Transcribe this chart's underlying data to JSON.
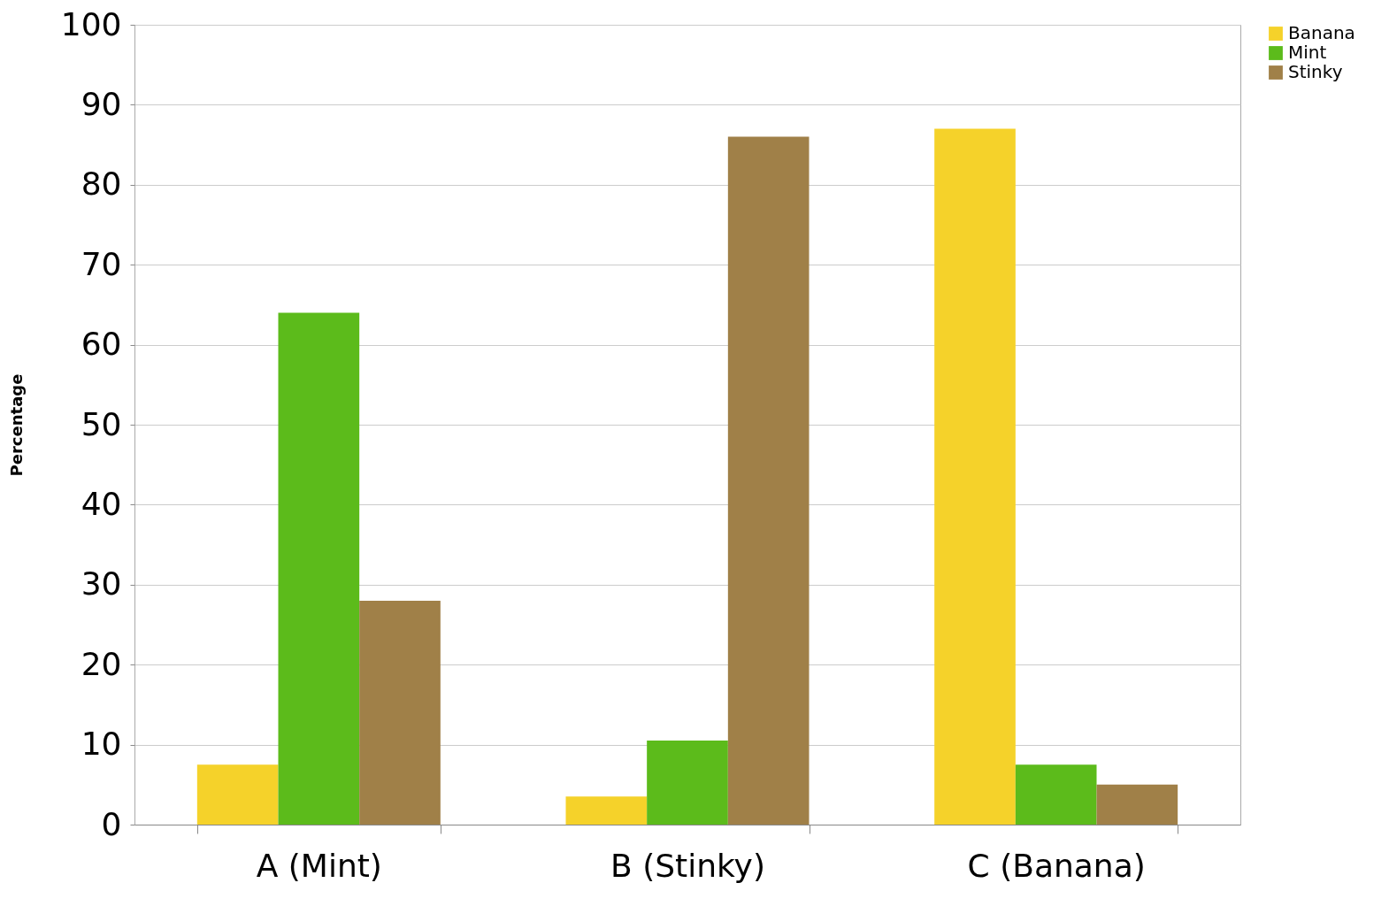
{
  "chart_data": {
    "type": "bar",
    "ylabel": "Percentage",
    "categories": [
      "A (Mint)",
      "B (Stinky)",
      "C (Banana)"
    ],
    "series": [
      {
        "name": "Banana",
        "color": "#f5d22a",
        "values": [
          7.5,
          3.5,
          87
        ]
      },
      {
        "name": "Mint",
        "color": "#5cbb1b",
        "values": [
          64,
          10.5,
          7.5
        ]
      },
      {
        "name": "Stinky",
        "color": "#a08048",
        "values": [
          28,
          86,
          5
        ]
      }
    ],
    "ylim": [
      0,
      100
    ],
    "yticks": [
      0,
      10,
      20,
      30,
      40,
      50,
      60,
      70,
      80,
      90,
      100
    ],
    "grid": "y",
    "legend": "right"
  }
}
